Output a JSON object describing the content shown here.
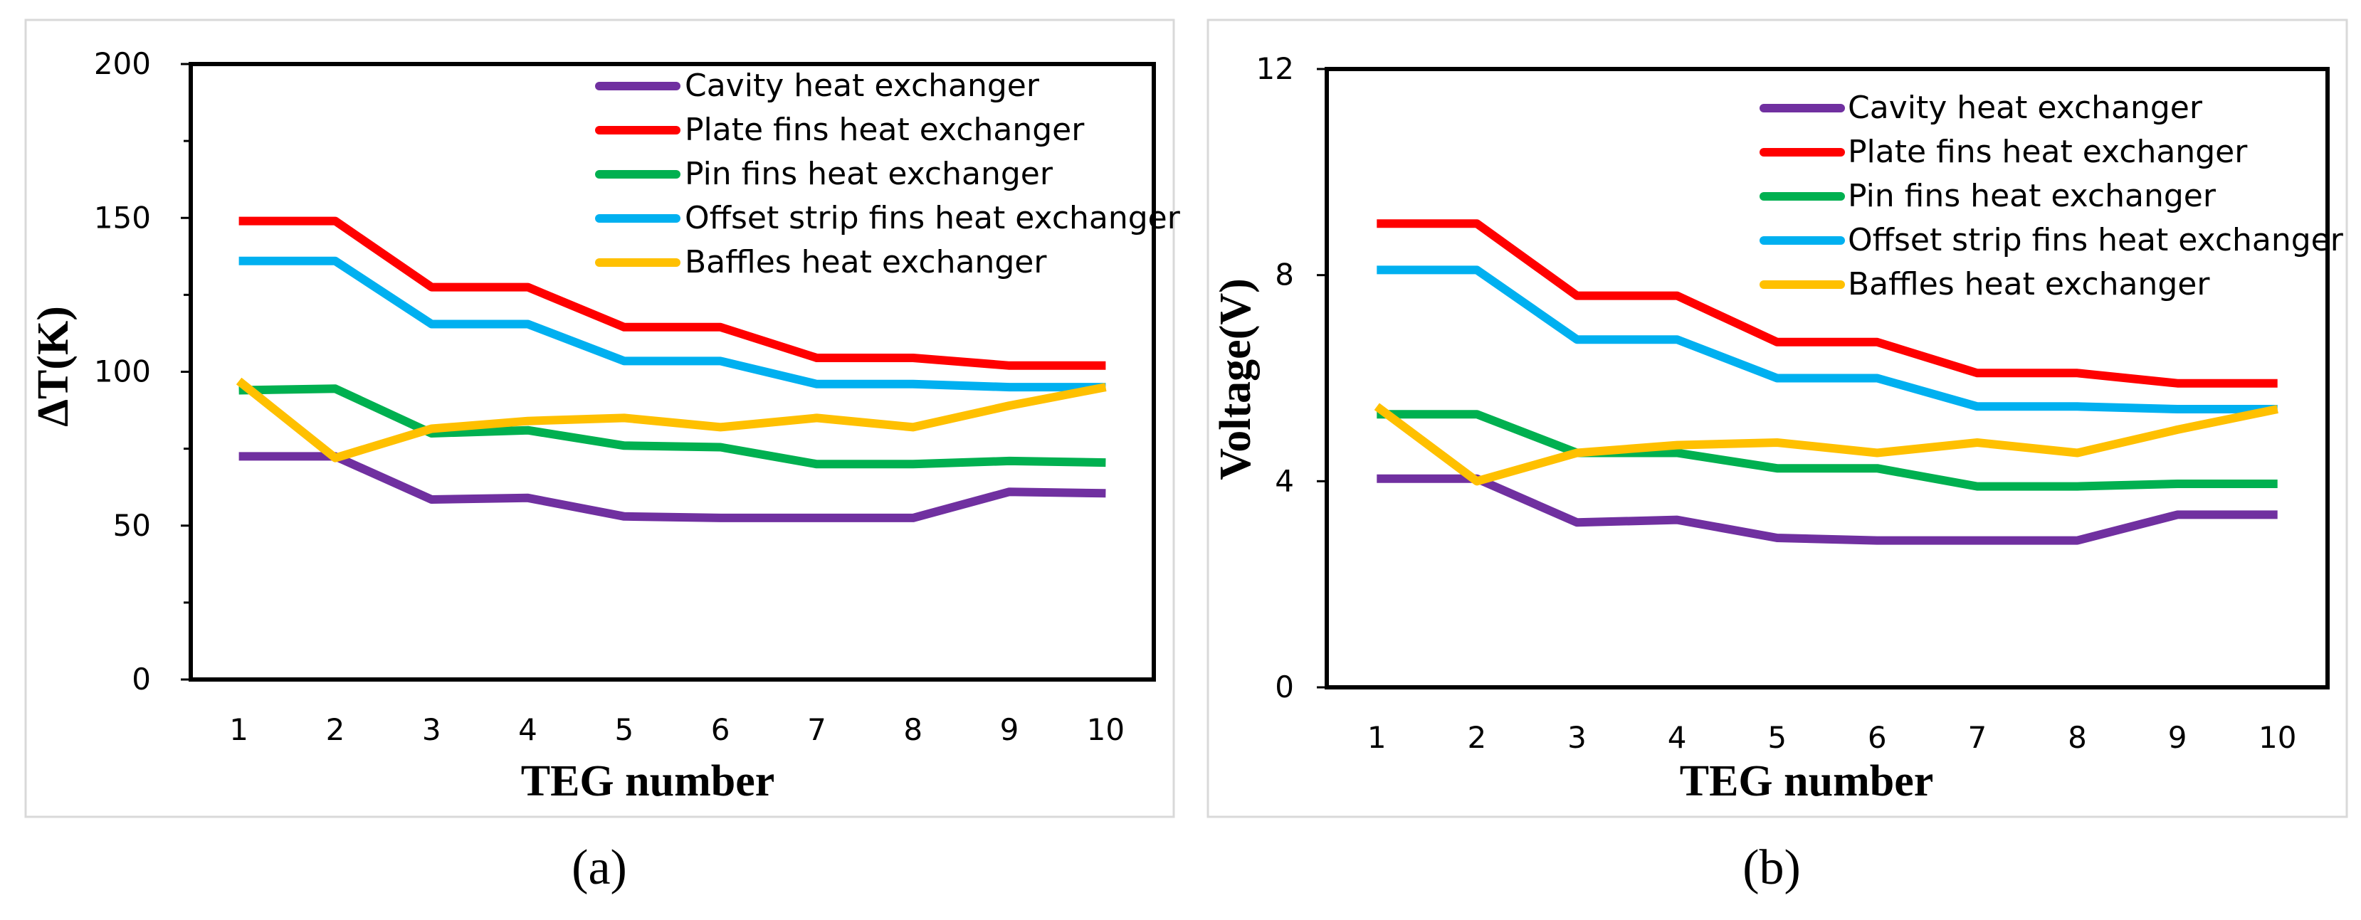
{
  "chart_data": [
    {
      "type": "line",
      "panel_label": "(a)",
      "xlabel": "TEG number",
      "ylabel": "ΔT(K)",
      "x": [
        1,
        2,
        3,
        4,
        5,
        6,
        7,
        8,
        9,
        10
      ],
      "xticks": [
        "1",
        "2",
        "3",
        "4",
        "5",
        "6",
        "7",
        "8",
        "9",
        "10"
      ],
      "ylim": [
        0,
        200
      ],
      "yticks": [
        0,
        50,
        100,
        150,
        200
      ],
      "legend_position": "top-right",
      "series": [
        {
          "name": "Cavity heat exchanger",
          "color": "#7030A0",
          "values": [
            72.5,
            72.5,
            58.5,
            59,
            53,
            52.5,
            52.5,
            52.5,
            61,
            60.5
          ]
        },
        {
          "name": "Plate fins heat exchanger",
          "color": "#FF0000",
          "values": [
            149,
            149,
            127.5,
            127.5,
            114.5,
            114.5,
            104.5,
            104.5,
            102,
            102
          ]
        },
        {
          "name": "Pin fins heat exchanger",
          "color": "#00B050",
          "values": [
            94,
            94.5,
            80,
            81,
            76,
            75.5,
            70,
            70,
            71,
            70.5
          ]
        },
        {
          "name": "Offset strip fins heat exchanger",
          "color": "#00B0F0",
          "values": [
            136,
            136,
            115.5,
            115.5,
            103.5,
            103.5,
            96,
            96,
            95,
            95
          ]
        },
        {
          "name": "Baffles heat exchanger",
          "color": "#FFC000",
          "values": [
            97,
            72,
            81.5,
            84,
            85,
            82,
            85,
            82,
            89,
            95
          ]
        }
      ]
    },
    {
      "type": "line",
      "panel_label": "(b)",
      "xlabel": "TEG number",
      "ylabel": "Voltage(V)",
      "x": [
        1,
        2,
        3,
        4,
        5,
        6,
        7,
        8,
        9,
        10
      ],
      "xticks": [
        "1",
        "2",
        "3",
        "4",
        "5",
        "6",
        "7",
        "8",
        "9",
        "10"
      ],
      "ylim": [
        0,
        12
      ],
      "yticks": [
        0,
        4,
        8,
        12
      ],
      "legend_position": "top-right",
      "series": [
        {
          "name": "Cavity heat exchanger",
          "color": "#7030A0",
          "values": [
            4.05,
            4.05,
            3.2,
            3.25,
            2.9,
            2.85,
            2.85,
            2.85,
            3.35,
            3.35
          ]
        },
        {
          "name": "Plate fins heat exchanger",
          "color": "#FF0000",
          "values": [
            9.0,
            9.0,
            7.6,
            7.6,
            6.7,
            6.7,
            6.1,
            6.1,
            5.9,
            5.9
          ]
        },
        {
          "name": "Pin fins heat exchanger",
          "color": "#00B050",
          "values": [
            5.3,
            5.3,
            4.55,
            4.55,
            4.25,
            4.25,
            3.9,
            3.9,
            3.95,
            3.95
          ]
        },
        {
          "name": "Offset strip fins heat exchanger",
          "color": "#00B0F0",
          "values": [
            8.1,
            8.1,
            6.75,
            6.75,
            6.0,
            6.0,
            5.45,
            5.45,
            5.4,
            5.4
          ]
        },
        {
          "name": "Baffles heat exchanger",
          "color": "#FFC000",
          "values": [
            5.45,
            4.0,
            4.55,
            4.7,
            4.75,
            4.55,
            4.75,
            4.55,
            5.0,
            5.4
          ]
        }
      ]
    }
  ]
}
